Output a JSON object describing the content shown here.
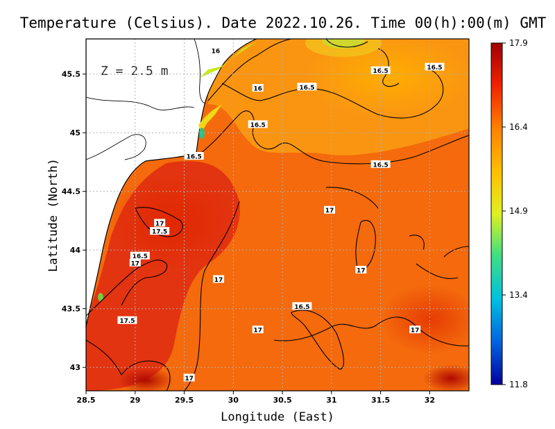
{
  "chart_data": {
    "type": "heatmap",
    "title": "Temperature (Celsius). Date 2022.10.26. Time 00(h):00(m) GMT",
    "xlabel": "Longitude (East)",
    "ylabel": "Latitude (North)",
    "annotation": "Z = 2.5 m",
    "xlim": [
      28.5,
      32.4
    ],
    "ylim": [
      42.8,
      45.8
    ],
    "x_ticks": [
      {
        "value": 28.5,
        "label": "28.5"
      },
      {
        "value": 29,
        "label": "29"
      },
      {
        "value": 29.5,
        "label": "29.5"
      },
      {
        "value": 30,
        "label": "30"
      },
      {
        "value": 30.5,
        "label": "30.5"
      },
      {
        "value": 31,
        "label": "31"
      },
      {
        "value": 31.5,
        "label": "31.5"
      },
      {
        "value": 32,
        "label": "32"
      }
    ],
    "y_ticks": [
      {
        "value": 43,
        "label": "43"
      },
      {
        "value": 43.5,
        "label": "43.5"
      },
      {
        "value": 44,
        "label": "44"
      },
      {
        "value": 44.5,
        "label": "44.5"
      },
      {
        "value": 45,
        "label": "45"
      },
      {
        "value": 45.5,
        "label": "45.5"
      }
    ],
    "grid": true,
    "colorbar": {
      "min": 11.8,
      "max": 17.9,
      "ticks": [
        {
          "value": 17.9,
          "label": "17.9"
        },
        {
          "value": 16.4,
          "label": "16.4"
        },
        {
          "value": 14.9,
          "label": "14.9"
        },
        {
          "value": 13.4,
          "label": "13.4"
        },
        {
          "value": 11.8,
          "label": "11.8"
        }
      ],
      "colors": [
        "#0000a0",
        "#0060e0",
        "#00c0e0",
        "#40e080",
        "#e0f020",
        "#ffc000",
        "#ff8000",
        "#f02000",
        "#a00000"
      ]
    },
    "contour_labels": [
      {
        "text": "16",
        "lon": 29.82,
        "lat": 45.7
      },
      {
        "text": "16.5",
        "lon": 31.5,
        "lat": 45.53
      },
      {
        "text": "16.5",
        "lon": 32.05,
        "lat": 45.56
      },
      {
        "text": "16",
        "lon": 30.25,
        "lat": 45.38
      },
      {
        "text": "16.5",
        "lon": 30.75,
        "lat": 45.39
      },
      {
        "text": "16.5",
        "lon": 30.25,
        "lat": 45.07
      },
      {
        "text": "16.5",
        "lon": 29.6,
        "lat": 44.8
      },
      {
        "text": "16.5",
        "lon": 31.5,
        "lat": 44.73
      },
      {
        "text": "17",
        "lon": 30.98,
        "lat": 44.34
      },
      {
        "text": "17",
        "lon": 29.25,
        "lat": 44.23
      },
      {
        "text": "17.5",
        "lon": 29.25,
        "lat": 44.16
      },
      {
        "text": "16.5",
        "lon": 29.05,
        "lat": 43.95
      },
      {
        "text": "17",
        "lon": 29.0,
        "lat": 43.89
      },
      {
        "text": "17",
        "lon": 31.3,
        "lat": 43.83
      },
      {
        "text": "17",
        "lon": 29.85,
        "lat": 43.75
      },
      {
        "text": "16.5",
        "lon": 30.7,
        "lat": 43.52
      },
      {
        "text": "17.5",
        "lon": 28.92,
        "lat": 43.4
      },
      {
        "text": "17",
        "lon": 30.25,
        "lat": 43.32
      },
      {
        "text": "17",
        "lon": 31.85,
        "lat": 43.32
      },
      {
        "text": "17",
        "lon": 29.55,
        "lat": 42.91
      }
    ]
  }
}
